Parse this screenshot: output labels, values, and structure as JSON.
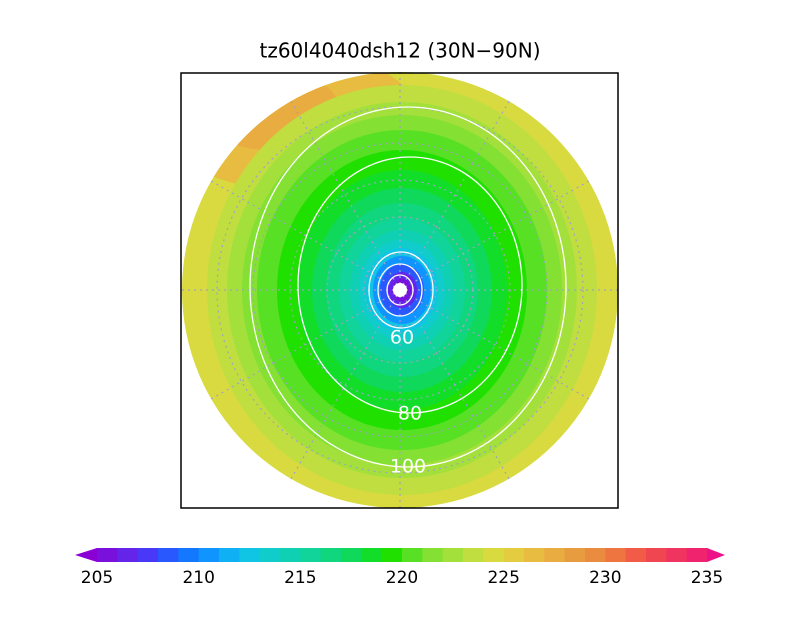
{
  "title": "tz60l4040dsh12 (30N−90N)",
  "contour_labels": [
    60,
    80,
    100
  ],
  "colorbar": {
    "ticks": [
      205,
      210,
      215,
      220,
      225,
      230,
      235
    ],
    "lim": [
      205,
      235
    ],
    "colors": [
      "#8a00d4",
      "#7a10dc",
      "#6424ea",
      "#4a38f8",
      "#2a58ff",
      "#1478ff",
      "#1094ff",
      "#10b0f4",
      "#10c4e4",
      "#10ccca",
      "#10d0b4",
      "#10d49a",
      "#10d67e",
      "#10d85a",
      "#12de2a",
      "#20e000",
      "#58e024",
      "#84e032",
      "#a4e03c",
      "#c0de40",
      "#d8da40",
      "#e4cc40",
      "#e8bc40",
      "#e8ac40",
      "#e89c40",
      "#ea8c40",
      "#ee7440",
      "#f05c48",
      "#f04652",
      "#f03460",
      "#f0246e",
      "#ee1288"
    ]
  }
}
